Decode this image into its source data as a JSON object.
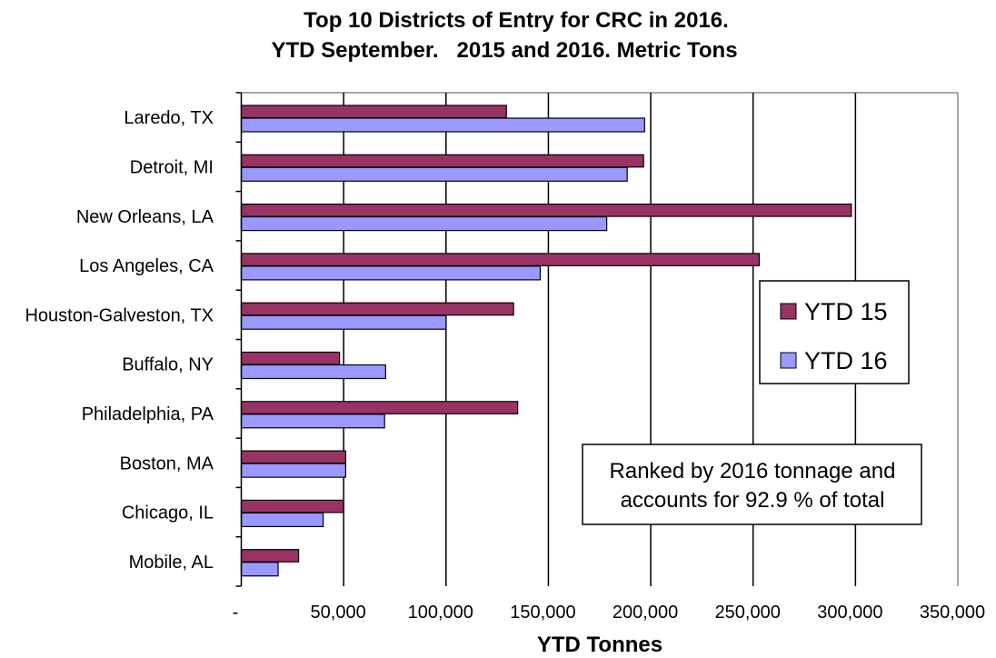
{
  "chart_data": {
    "type": "bar",
    "orientation": "horizontal",
    "title": [
      "Top 10 Districts of Entry for CRC in 2016.",
      "YTD September.   2015 and 2016. Metric Tons"
    ],
    "xlabel": "YTD Tonnes",
    "ylabel": "",
    "xlim": [
      0,
      350000
    ],
    "xticks": [
      0,
      50000,
      100000,
      150000,
      200000,
      250000,
      300000,
      350000
    ],
    "xtick_labels": [
      "-",
      "50,000",
      "100,000",
      "150,000",
      "200,000",
      "250,000",
      "300,000",
      "350,000"
    ],
    "grid": true,
    "categories": [
      "Laredo, TX",
      "Detroit, MI",
      "New Orleans, LA",
      "Los Angeles, CA",
      "Houston-Galveston, TX",
      "Buffalo, NY",
      "Philadelphia, PA",
      "Boston, MA",
      "Chicago, IL",
      "Mobile, AL"
    ],
    "series": [
      {
        "name": "YTD 15",
        "color": "#993366",
        "values": [
          129500,
          196500,
          298000,
          253000,
          133000,
          48000,
          135000,
          51000,
          50000,
          28000
        ]
      },
      {
        "name": "YTD 16",
        "color": "#9999ff",
        "values": [
          197000,
          188500,
          178500,
          146000,
          100000,
          70500,
          70000,
          51000,
          40000,
          18000
        ]
      }
    ],
    "legend": {
      "placement": "right",
      "entries": [
        "YTD 15",
        "YTD 16"
      ]
    },
    "annotation": [
      "Ranked by 2016 tonnage and",
      "accounts for 92.9 % of total"
    ]
  }
}
